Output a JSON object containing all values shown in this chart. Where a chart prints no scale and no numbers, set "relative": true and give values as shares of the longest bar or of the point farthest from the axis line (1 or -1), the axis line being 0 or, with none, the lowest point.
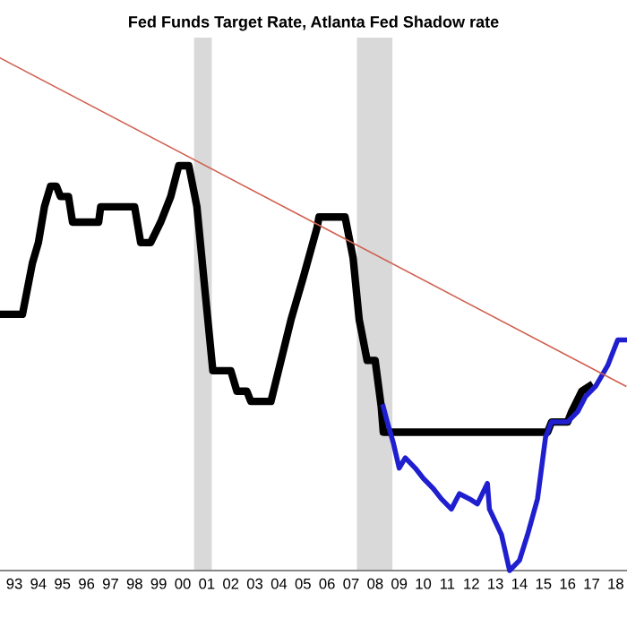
{
  "chart_data": {
    "type": "line",
    "title": "Fed Funds Target Rate, Atlanta Fed Shadow rate",
    "relative": true,
    "xlim": [
      "1992-11-25",
      "2018-12-20"
    ],
    "xticks": [
      {
        "value": "1993-07-01",
        "label": "93"
      },
      {
        "value": "1994-07-01",
        "label": "94"
      },
      {
        "value": "1995-07-01",
        "label": "95"
      },
      {
        "value": "1996-07-01",
        "label": "96"
      },
      {
        "value": "1997-07-01",
        "label": "97"
      },
      {
        "value": "1998-07-01",
        "label": "98"
      },
      {
        "value": "1999-07-01",
        "label": "99"
      },
      {
        "value": "2000-07-01",
        "label": "00"
      },
      {
        "value": "2001-07-01",
        "label": "01"
      },
      {
        "value": "2002-07-01",
        "label": "02"
      },
      {
        "value": "2003-07-01",
        "label": "03"
      },
      {
        "value": "2004-07-01",
        "label": "04"
      },
      {
        "value": "2005-07-01",
        "label": "05"
      },
      {
        "value": "2006-07-01",
        "label": "06"
      },
      {
        "value": "2007-07-01",
        "label": "07"
      },
      {
        "value": "2008-07-01",
        "label": "08"
      },
      {
        "value": "2009-07-01",
        "label": "09"
      },
      {
        "value": "2010-07-01",
        "label": "10"
      },
      {
        "value": "2011-07-01",
        "label": "11"
      },
      {
        "value": "2012-07-01",
        "label": "12"
      },
      {
        "value": "2013-07-01",
        "label": "13"
      },
      {
        "value": "2014-07-01",
        "label": "14"
      },
      {
        "value": "2015-07-01",
        "label": "15"
      },
      {
        "value": "2016-07-01",
        "label": "16"
      },
      {
        "value": "2017-07-01",
        "label": "17"
      },
      {
        "value": "2018-07-01",
        "label": "18"
      }
    ],
    "tick_labels": "x",
    "grid": false,
    "legend": false,
    "marker": "none",
    "line_style": "solid",
    "bands": [
      {
        "axis": "x",
        "from": "2000-12-20",
        "to": "2001-09-15",
        "color": "#d9d9d9"
      },
      {
        "axis": "x",
        "from": "2007-09-28",
        "to": "2009-03-20",
        "color": "#d9d9d9"
      }
    ],
    "series": [
      {
        "color": "#000000",
        "x": [
          "1992-12",
          "1993-11",
          "1994-04",
          "1994-07",
          "1994-10",
          "1995-01",
          "1995-04",
          "1995-06",
          "1995-10",
          "1995-12",
          "1997-01",
          "1997-02",
          "1998-07",
          "1998-10",
          "1999-03",
          "1999-08",
          "2000-01",
          "2000-05",
          "2000-10",
          "2001-02",
          "2001-06",
          "2001-10",
          "2002-07",
          "2002-10",
          "2003-03",
          "2003-05",
          "2004-03",
          "2004-08",
          "2005-01",
          "2005-07",
          "2006-02",
          "2006-03",
          "2007-04",
          "2007-08",
          "2007-11",
          "2008-03",
          "2008-07",
          "2008-10",
          "2008-11",
          "2015-09",
          "2015-11",
          "2016-07",
          "2016-09",
          "2017-02",
          "2017-06"
        ],
        "values": [
          0.5,
          0.5,
          0.6,
          0.64,
          0.71,
          0.75,
          0.75,
          0.73,
          0.73,
          0.68,
          0.68,
          0.71,
          0.71,
          0.64,
          0.64,
          0.68,
          0.73,
          0.79,
          0.79,
          0.71,
          0.55,
          0.39,
          0.39,
          0.35,
          0.35,
          0.33,
          0.33,
          0.41,
          0.49,
          0.57,
          0.67,
          0.69,
          0.69,
          0.61,
          0.49,
          0.41,
          0.41,
          0.32,
          0.27,
          0.27,
          0.29,
          0.29,
          0.31,
          0.35,
          0.36
        ]
      },
      {
        "color": "#1f1fd0",
        "x": [
          "2008-11",
          "2009-01",
          "2009-04",
          "2009-07",
          "2009-10",
          "2010-03",
          "2010-07",
          "2010-12",
          "2011-04",
          "2011-09",
          "2012-01",
          "2012-06",
          "2012-10",
          "2013-03",
          "2013-04",
          "2013-10",
          "2014-02",
          "2014-07",
          "2014-11",
          "2015-04",
          "2015-08",
          "2015-11",
          "2016-07",
          "2016-12",
          "2017-04",
          "2017-09",
          "2018-03",
          "2018-08",
          "2018-12"
        ],
        "values": [
          0.32,
          0.29,
          0.25,
          0.2,
          0.22,
          0.2,
          0.18,
          0.16,
          0.14,
          0.12,
          0.15,
          0.14,
          0.13,
          0.17,
          0.12,
          0.07,
          0.0,
          0.02,
          0.07,
          0.14,
          0.26,
          0.29,
          0.29,
          0.31,
          0.34,
          0.36,
          0.4,
          0.45,
          0.45
        ]
      },
      {
        "color": "#d06050",
        "x": [
          "1992-12",
          "2018-12"
        ],
        "values": [
          1.0,
          0.36
        ]
      }
    ]
  }
}
